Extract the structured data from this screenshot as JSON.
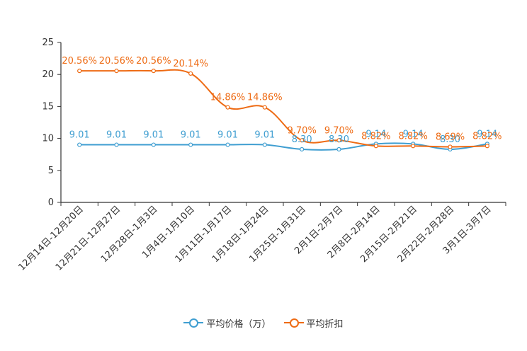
{
  "chart_data": {
    "type": "line",
    "title": "",
    "xlabel": "",
    "ylabel": "",
    "ylim": [
      0,
      25
    ],
    "yticks": [
      "0",
      "5",
      "10",
      "15",
      "20",
      "25"
    ],
    "categories": [
      "12月14日-12月20日",
      "12月21日-12月27日",
      "12月28日-1月3日",
      "1月4日-1月10日",
      "1月11日-1月17日",
      "1月18日-1月24日",
      "1月25日-1月31日",
      "2月1日-2月7日",
      "2月8日-2月14日",
      "2月15日-2月21日",
      "2月22日-2月28日",
      "3月1日-3月7日"
    ],
    "series": [
      {
        "name": "平均价格（万）",
        "color": "#3f9ed1",
        "values": [
          9.01,
          9.01,
          9.01,
          9.01,
          9.01,
          9.01,
          8.3,
          8.3,
          9.14,
          9.14,
          8.3,
          9.14
        ],
        "labels": [
          "9.01",
          "9.01",
          "9.01",
          "9.01",
          "9.01",
          "9.01",
          "8.30",
          "8.30",
          "9.14",
          "9.14",
          "8.30",
          "9.14"
        ]
      },
      {
        "name": "平均折扣",
        "color": "#ee6b14",
        "values": [
          20.56,
          20.56,
          20.56,
          20.14,
          14.86,
          14.86,
          9.7,
          9.7,
          8.82,
          8.82,
          8.69,
          8.82
        ],
        "labels": [
          "20.56%",
          "20.56%",
          "20.56%",
          "20.14%",
          "14.86%",
          "14.86%",
          "9.70%",
          "9.70%",
          "8.82%",
          "8.82%",
          "8.69%",
          "8.82%"
        ]
      }
    ],
    "legend_position": "bottom-center"
  }
}
